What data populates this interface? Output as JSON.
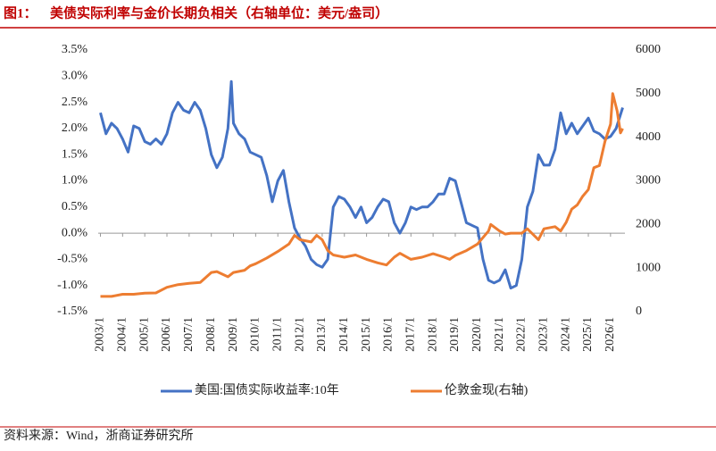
{
  "figure_label": "图1：",
  "source": "资料来源：Wind，浙商证券研究所",
  "chart_data": {
    "type": "line",
    "title": "美债实际利率与金价长期负相关（右轴单位：美元/盎司）",
    "xlim": [
      2002.9,
      2026.65
    ],
    "xticks": [
      {
        "value": 2003,
        "label": "2003/1"
      },
      {
        "value": 2004,
        "label": "2004/1"
      },
      {
        "value": 2005,
        "label": "2005/1"
      },
      {
        "value": 2006,
        "label": "2006/1"
      },
      {
        "value": 2007,
        "label": "2007/1"
      },
      {
        "value": 2008,
        "label": "2008/1"
      },
      {
        "value": 2009,
        "label": "2009/1"
      },
      {
        "value": 2010,
        "label": "2010/1"
      },
      {
        "value": 2011,
        "label": "2011/1"
      },
      {
        "value": 2012,
        "label": "2012/1"
      },
      {
        "value": 2013,
        "label": "2013/1"
      },
      {
        "value": 2014,
        "label": "2014/1"
      },
      {
        "value": 2015,
        "label": "2015/1"
      },
      {
        "value": 2016,
        "label": "2016/1"
      },
      {
        "value": 2017,
        "label": "2017/1"
      },
      {
        "value": 2018,
        "label": "2018/1"
      },
      {
        "value": 2019,
        "label": "2019/1"
      },
      {
        "value": 2020,
        "label": "2020/1"
      },
      {
        "value": 2021,
        "label": "2021/1"
      },
      {
        "value": 2022,
        "label": "2022/1"
      },
      {
        "value": 2023,
        "label": "2023/1"
      },
      {
        "value": 2024,
        "label": "2024/1"
      },
      {
        "value": 2025,
        "label": "2025/1"
      },
      {
        "value": 2026,
        "label": "2026/1"
      }
    ],
    "ylim": [
      -1.5,
      3.5
    ],
    "yticks": [
      {
        "value": -1.5,
        "label": "-1.5%"
      },
      {
        "value": -1,
        "label": "-1.0%"
      },
      {
        "value": -0.5,
        "label": "-0.5%"
      },
      {
        "value": 0,
        "label": "0.0%"
      },
      {
        "value": 0.5,
        "label": "0.5%"
      },
      {
        "value": 1,
        "label": "1.0%"
      },
      {
        "value": 1.5,
        "label": "1.5%"
      },
      {
        "value": 2,
        "label": "2.0%"
      },
      {
        "value": 2.5,
        "label": "2.5%"
      },
      {
        "value": 3,
        "label": "3.0%"
      },
      {
        "value": 3.5,
        "label": "3.5%"
      }
    ],
    "y2lim": [
      0,
      6000
    ],
    "y2ticks": [
      0,
      1000,
      2000,
      3000,
      4000,
      5000,
      6000
    ],
    "series": [
      {
        "name": "美国:国债实际收益率:10年",
        "color": "#4472c4",
        "x": [
          2003,
          2003.25,
          2003.5,
          2003.75,
          2004,
          2004.25,
          2004.5,
          2004.75,
          2005,
          2005.25,
          2005.5,
          2005.75,
          2006,
          2006.25,
          2006.5,
          2006.75,
          2007,
          2007.25,
          2007.5,
          2007.75,
          2008,
          2008.25,
          2008.5,
          2008.75,
          2008.9,
          2009,
          2009.25,
          2009.5,
          2009.75,
          2010,
          2010.25,
          2010.5,
          2010.75,
          2011,
          2011.25,
          2011.5,
          2011.75,
          2012,
          2012.25,
          2012.5,
          2012.75,
          2013,
          2013.25,
          2013.5,
          2013.75,
          2014,
          2014.25,
          2014.5,
          2014.75,
          2015,
          2015.25,
          2015.5,
          2015.75,
          2016,
          2016.25,
          2016.5,
          2016.75,
          2017,
          2017.25,
          2017.5,
          2017.75,
          2018,
          2018.25,
          2018.5,
          2018.75,
          2019,
          2019.25,
          2019.5,
          2019.75,
          2020,
          2020.25,
          2020.5,
          2020.75,
          2021,
          2021.25,
          2021.5,
          2021.75,
          2022,
          2022.25,
          2022.5,
          2022.75,
          2023,
          2023.25,
          2023.5,
          2023.75,
          2024,
          2024.25,
          2024.5,
          2024.75,
          2025,
          2025.25,
          2025.5,
          2025.75,
          2026,
          2026.25,
          2026.55
        ],
        "values": [
          2.3,
          1.9,
          2.1,
          2.0,
          1.8,
          1.55,
          2.05,
          2.0,
          1.75,
          1.7,
          1.8,
          1.7,
          1.9,
          2.3,
          2.5,
          2.35,
          2.3,
          2.5,
          2.35,
          2.0,
          1.5,
          1.25,
          1.45,
          2.0,
          2.9,
          2.1,
          1.9,
          1.8,
          1.55,
          1.5,
          1.45,
          1.1,
          0.6,
          1.0,
          1.2,
          0.6,
          0.1,
          -0.1,
          -0.25,
          -0.5,
          -0.6,
          -0.65,
          -0.5,
          0.5,
          0.7,
          0.65,
          0.5,
          0.3,
          0.5,
          0.2,
          0.3,
          0.5,
          0.65,
          0.6,
          0.2,
          0.0,
          0.2,
          0.5,
          0.45,
          0.5,
          0.5,
          0.6,
          0.75,
          0.75,
          1.05,
          1.0,
          0.6,
          0.2,
          0.15,
          0.1,
          -0.5,
          -0.9,
          -0.95,
          -0.9,
          -0.7,
          -1.05,
          -1.0,
          -0.5,
          0.5,
          0.8,
          1.5,
          1.3,
          1.3,
          1.6,
          2.3,
          1.9,
          2.1,
          1.9,
          2.05,
          2.2,
          1.95,
          1.9,
          1.8,
          1.85,
          2.0,
          2.4
        ]
      },
      {
        "name": "伦敦金现(右轴)",
        "color": "#ed7d31",
        "axis": "y2",
        "x": [
          2003,
          2003.5,
          2004,
          2004.5,
          2005,
          2005.5,
          2006,
          2006.5,
          2007,
          2007.5,
          2008,
          2008.25,
          2008.75,
          2009,
          2009.5,
          2009.75,
          2010,
          2010.5,
          2011,
          2011.5,
          2011.75,
          2012,
          2012.5,
          2012.75,
          2013,
          2013.25,
          2013.5,
          2014,
          2014.5,
          2015,
          2015.5,
          2015.9,
          2016.25,
          2016.5,
          2017,
          2017.5,
          2018,
          2018.5,
          2018.75,
          2019,
          2019.5,
          2020,
          2020.5,
          2020.6,
          2021,
          2021.25,
          2021.5,
          2022,
          2022.25,
          2022.75,
          2023,
          2023.5,
          2023.75,
          2024,
          2024.25,
          2024.5,
          2024.75,
          2025,
          2025.25,
          2025.5,
          2025.75,
          2026,
          2026.1,
          2026.3,
          2026.45,
          2026.55
        ],
        "values": [
          350,
          350,
          400,
          400,
          425,
          430,
          560,
          620,
          650,
          670,
          900,
          920,
          800,
          900,
          950,
          1050,
          1100,
          1230,
          1380,
          1550,
          1750,
          1650,
          1600,
          1750,
          1650,
          1400,
          1300,
          1250,
          1300,
          1200,
          1120,
          1070,
          1250,
          1340,
          1200,
          1250,
          1330,
          1250,
          1200,
          1290,
          1400,
          1550,
          1850,
          2000,
          1850,
          1780,
          1800,
          1800,
          1900,
          1650,
          1900,
          1950,
          1850,
          2050,
          2350,
          2450,
          2650,
          2800,
          3300,
          3350,
          3900,
          4300,
          5000,
          4600,
          4100,
          4200
        ]
      }
    ]
  }
}
